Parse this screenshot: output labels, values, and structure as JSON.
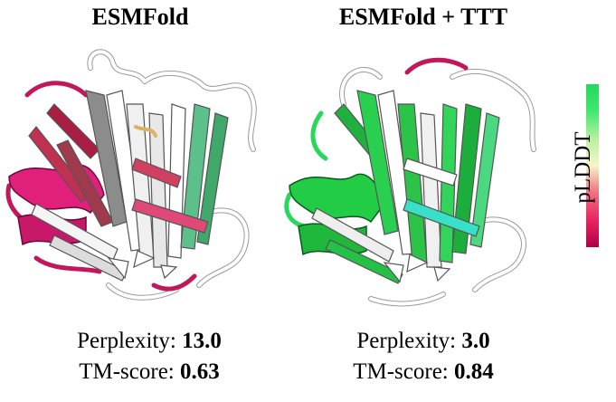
{
  "panels": [
    {
      "title": "ESMFold",
      "perplexity_label": "Perplexity:",
      "perplexity_value": "13.0",
      "tm_label": "TM-score:",
      "tm_value": "0.63"
    },
    {
      "title": "ESMFold + TTT",
      "perplexity_label": "Perplexity:",
      "perplexity_value": "3.0",
      "tm_label": "TM-score:",
      "tm_value": "0.84"
    }
  ],
  "colorbar": {
    "label": "pLDDT",
    "colors": [
      "#b0004a",
      "#e8255f",
      "#f07080",
      "#f5f5c8",
      "#b8f0a0",
      "#40e870",
      "#26d95a"
    ]
  }
}
